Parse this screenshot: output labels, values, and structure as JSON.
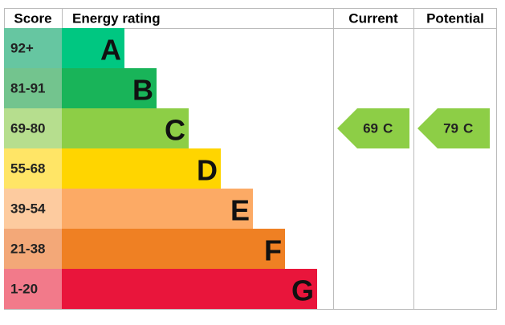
{
  "header": {
    "score": "Score",
    "rating": "Energy rating",
    "current": "Current",
    "potential": "Potential"
  },
  "bands": [
    {
      "score": "92+",
      "letter": "A",
      "score_color": "#66c6a1",
      "color": "#00c781"
    },
    {
      "score": "81-91",
      "letter": "B",
      "score_color": "#73c48e",
      "color": "#19b459"
    },
    {
      "score": "69-80",
      "letter": "C",
      "score_color": "#b6de8e",
      "color": "#8dce46"
    },
    {
      "score": "55-68",
      "letter": "D",
      "score_color": "#ffe566",
      "color": "#ffd500"
    },
    {
      "score": "39-54",
      "letter": "E",
      "score_color": "#fdcb9f",
      "color": "#fcaa65"
    },
    {
      "score": "21-38",
      "letter": "F",
      "score_color": "#f3a878",
      "color": "#ef8023"
    },
    {
      "score": "1-20",
      "letter": "G",
      "score_color": "#f27a8a",
      "color": "#e9153b"
    }
  ],
  "current": {
    "value": 69,
    "letter": "C"
  },
  "potential": {
    "value": 79,
    "letter": "C"
  }
}
